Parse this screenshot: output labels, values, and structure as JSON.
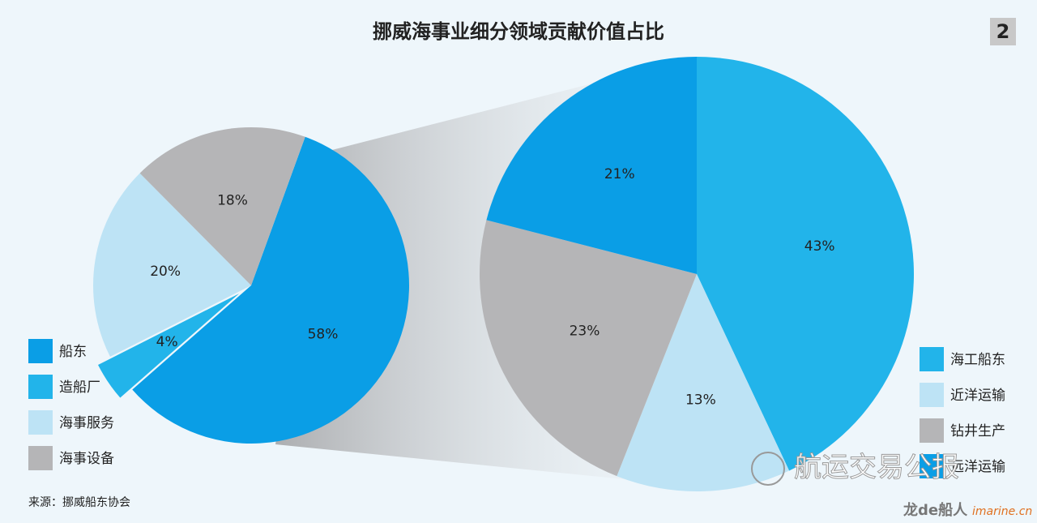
{
  "title": "挪威海事业细分领域贡献价值占比",
  "page_number": "2",
  "source": "来源：挪威船东协会",
  "watermark": {
    "text": "航运交易公报",
    "logo": "龙de船人",
    "site": "imarine.cn"
  },
  "chart_data": [
    {
      "type": "pie",
      "categories": [
        "船东",
        "造船厂",
        "海事服务",
        "海事设备"
      ],
      "values": [
        58,
        4,
        20,
        18
      ],
      "value_labels": [
        "58%",
        "4%",
        "20%",
        "18%"
      ],
      "colors": [
        "#0a9ee6",
        "#22b4ea",
        "#bde3f5",
        "#b5b5b7"
      ]
    },
    {
      "type": "pie",
      "categories": [
        "海工船东",
        "近洋运输",
        "钻井生产",
        "远洋运输"
      ],
      "values": [
        43,
        13,
        23,
        21
      ],
      "value_labels": [
        "43%",
        "13%",
        "23%",
        "21%"
      ],
      "colors": [
        "#22b4ea",
        "#bde3f5",
        "#b5b5b7",
        "#0a9ee6"
      ]
    }
  ]
}
